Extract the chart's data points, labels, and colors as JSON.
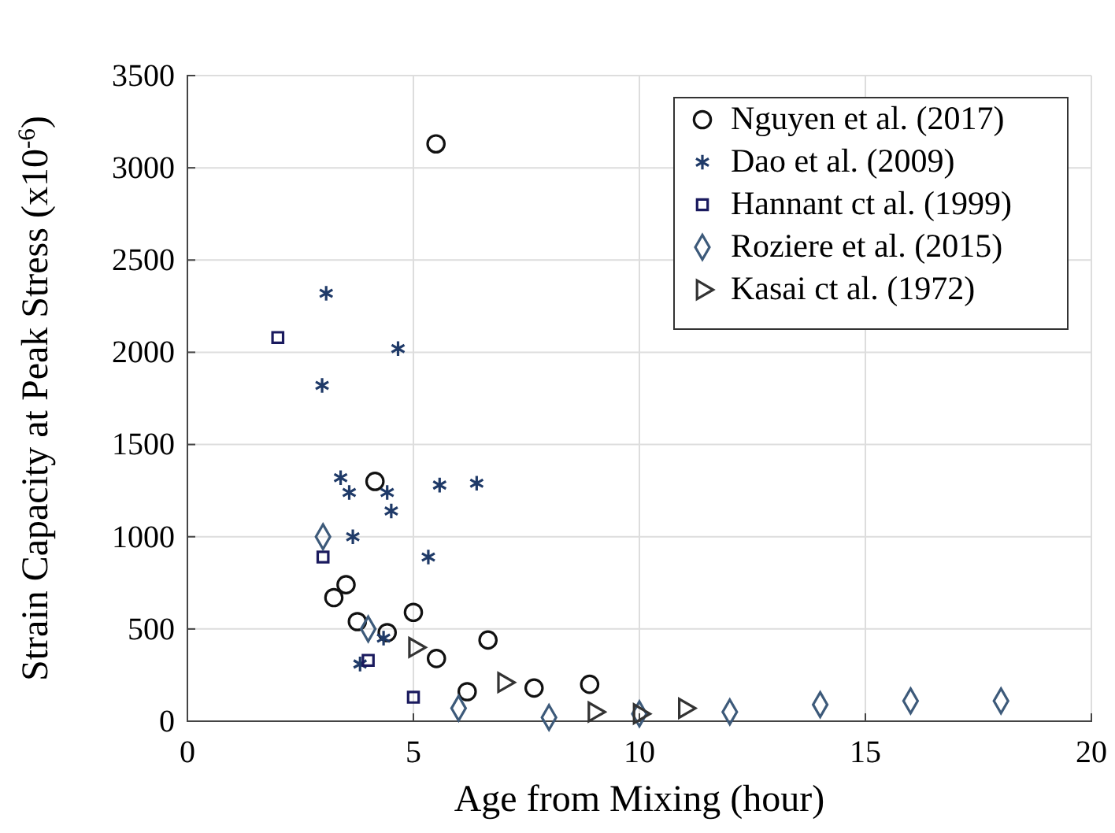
{
  "chart_data": {
    "type": "scatter",
    "xlabel": "Age from Mixing (hour)",
    "ylabel": "Strain Capacity at Peak Stress (x10$^{-6}$)",
    "xlim": [
      0,
      20
    ],
    "xticks": [
      0,
      5,
      10,
      15,
      20
    ],
    "ylim": [
      0,
      3500
    ],
    "yticks": [
      0,
      500,
      1000,
      1500,
      2000,
      2500,
      3000,
      3500
    ],
    "grid": true,
    "legend": "top right",
    "series": [
      {
        "name": "Nguyen et al. (2017)",
        "color": "#111111",
        "marker": "circle",
        "x": [
          5.5,
          4.15,
          3.24,
          3.51,
          3.76,
          4.42,
          5.0,
          5.51,
          6.19,
          6.65,
          7.67,
          8.9
        ],
        "values": [
          3130,
          1300,
          670,
          740,
          540,
          480,
          590,
          340,
          160,
          440,
          180,
          200
        ]
      },
      {
        "name": "Dao et al. (2009)",
        "color": "#1f3a68",
        "marker": "cross",
        "x": [
          3.07,
          2.98,
          4.66,
          3.39,
          3.58,
          4.42,
          4.51,
          5.58,
          6.4,
          3.66,
          5.33,
          4.34,
          3.82
        ],
        "values": [
          2320,
          1820,
          2020,
          1320,
          1240,
          1240,
          1140,
          1280,
          1290,
          1000,
          890,
          450,
          310
        ]
      },
      {
        "name": "Hannant ct al. (1999)",
        "color": "#1a1a5e",
        "marker": "square",
        "x": [
          2.0,
          3.0,
          4.0,
          5.0
        ],
        "values": [
          2080,
          890,
          330,
          130
        ]
      },
      {
        "name": "Roziere et al. (2015)",
        "color": "#3d5a7a",
        "marker": "diamond",
        "x": [
          3.0,
          4.0,
          6.0,
          8.0,
          10.0,
          12.0,
          14.0,
          16.0,
          18.0
        ],
        "values": [
          1000,
          500,
          70,
          20,
          40,
          50,
          90,
          110,
          110
        ]
      },
      {
        "name": "Kasai ct al. (1972)",
        "color": "#333333",
        "marker": "triangle",
        "x": [
          5.03,
          7.0,
          9.0,
          10.0,
          11.0
        ],
        "values": [
          400,
          210,
          50,
          40,
          70
        ]
      }
    ]
  }
}
